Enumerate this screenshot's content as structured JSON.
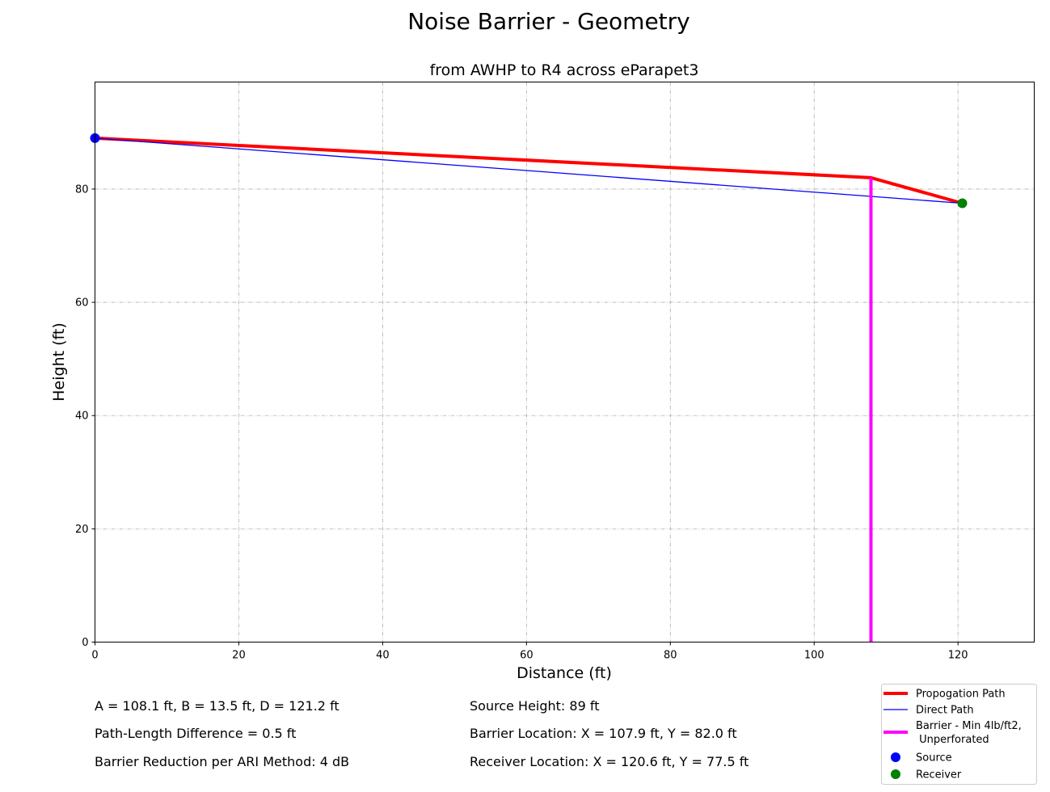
{
  "chart_data": {
    "type": "line",
    "title": "Noise Barrier - Geometry",
    "subtitle": "from AWHP to R4 across eParapet3",
    "xlabel": "Distance (ft)",
    "ylabel": "Height (ft)",
    "xlim": [
      0,
      130.6
    ],
    "ylim": [
      0,
      98.9
    ],
    "xticks": [
      0,
      20,
      40,
      60,
      80,
      100,
      120
    ],
    "yticks": [
      0,
      20,
      40,
      60,
      80
    ],
    "grid": true,
    "legend_position": "bottom-right",
    "series": [
      {
        "name": "Propogation Path",
        "color": "#ff0000",
        "style": "line-thick",
        "points": [
          [
            0,
            89.0
          ],
          [
            107.9,
            82.0
          ],
          [
            120.6,
            77.5
          ]
        ]
      },
      {
        "name": "Direct Path",
        "color": "#0000ff",
        "style": "line-thin",
        "points": [
          [
            0,
            89.0
          ],
          [
            120.6,
            77.5
          ]
        ]
      },
      {
        "name": "Barrier - Min 4lb/ft2,\n Unperforated",
        "color": "#ff00ff",
        "style": "line-thick",
        "points": [
          [
            107.9,
            0
          ],
          [
            107.9,
            82.0
          ]
        ]
      },
      {
        "name": "Source",
        "color": "#0000ff",
        "style": "marker",
        "points": [
          [
            0,
            89.0
          ]
        ]
      },
      {
        "name": "Receiver",
        "color": "#008000",
        "style": "marker",
        "points": [
          [
            120.6,
            77.5
          ]
        ]
      }
    ]
  },
  "info": {
    "abd": "A = 108.1 ft, B = 13.5 ft, D = 121.2 ft",
    "pld": "Path-Length Difference = 0.5 ft",
    "reduction": "Barrier Reduction per ARI Method: 4 dB",
    "source_height": "Source Height: 89 ft",
    "barrier_location": "Barrier Location: X = 107.9 ft, Y = 82.0 ft",
    "receiver_location": "Receiver Location: X = 120.6 ft, Y = 77.5 ft"
  }
}
